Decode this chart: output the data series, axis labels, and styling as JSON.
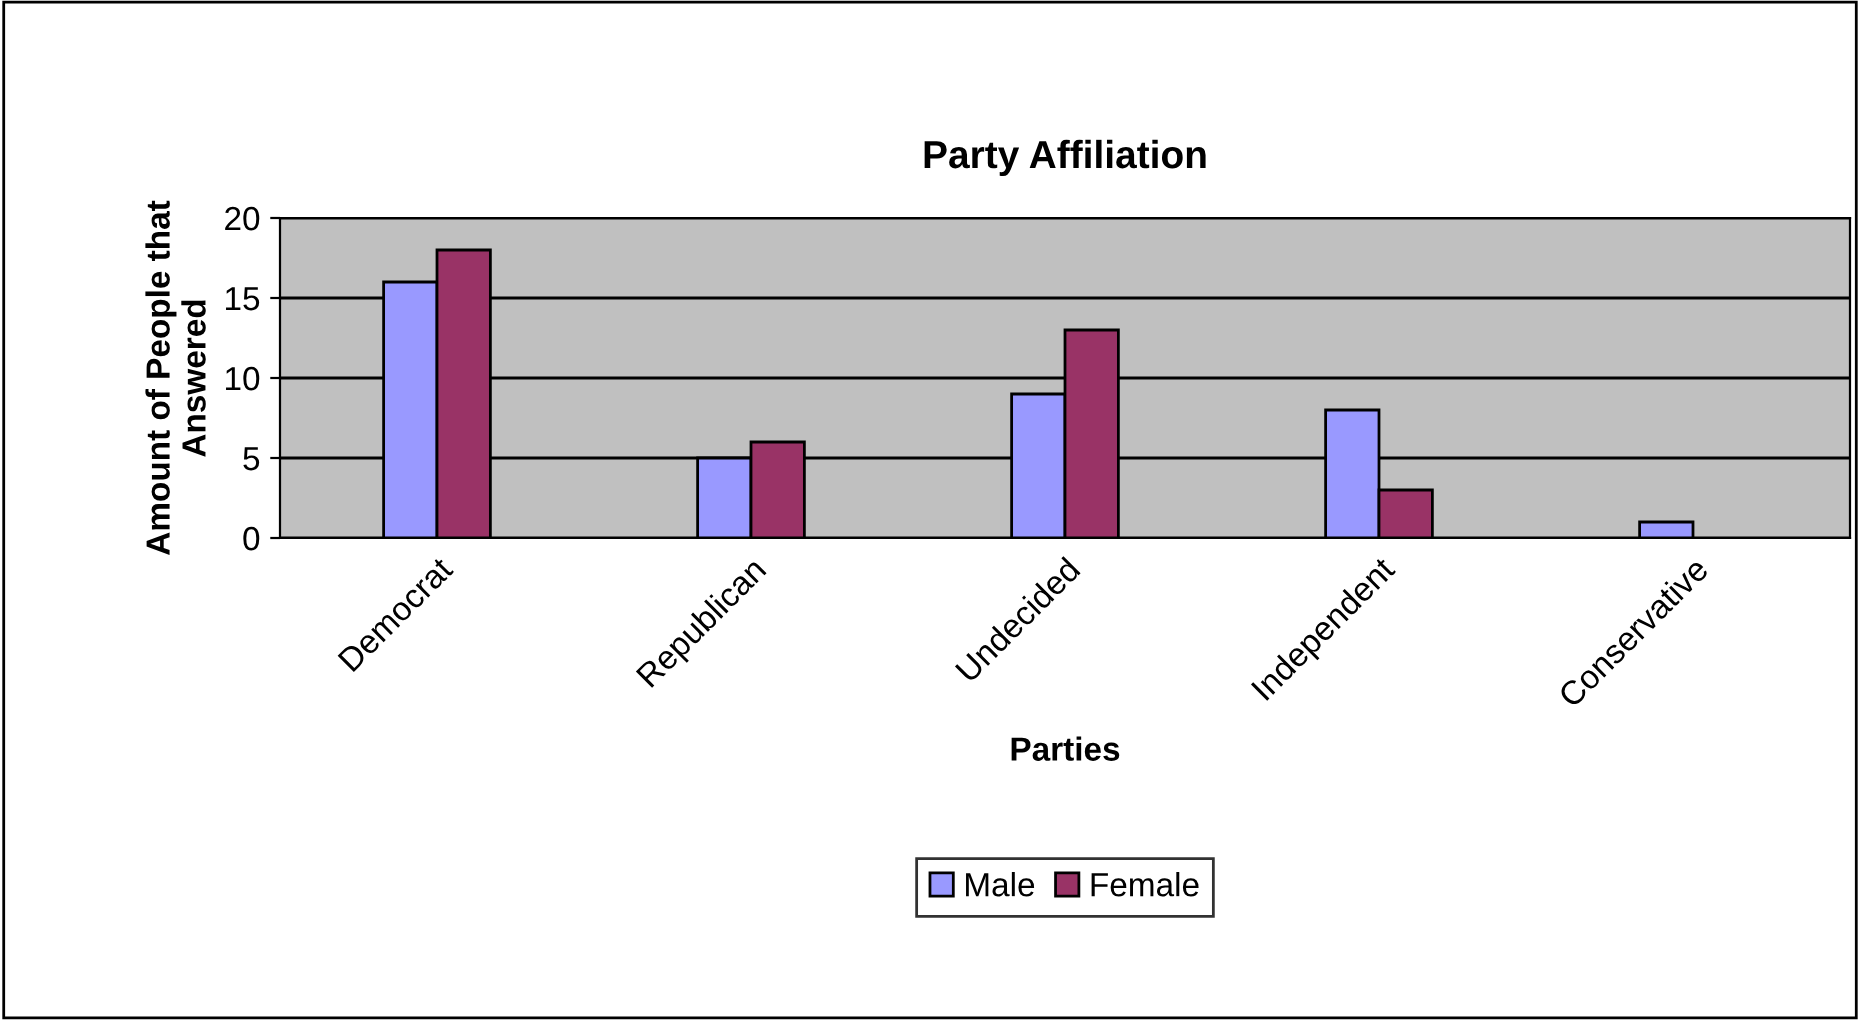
{
  "chart_data": {
    "type": "bar",
    "title": "Party Affiliation",
    "xlabel": "Parties",
    "ylabel": "Amount of People that\nAnswered",
    "categories": [
      "Democrat",
      "Republican",
      "Undecided",
      "Independent",
      "Conservative"
    ],
    "series": [
      {
        "name": "Male",
        "color": "#9999ff",
        "values": [
          16,
          5,
          9,
          8,
          1
        ]
      },
      {
        "name": "Female",
        "color": "#993366",
        "values": [
          18,
          6,
          13,
          3,
          null
        ]
      }
    ],
    "ylim": [
      0,
      20
    ],
    "yticks": [
      0,
      5,
      10,
      15,
      20
    ],
    "grid": "y",
    "legend": "bottom"
  }
}
